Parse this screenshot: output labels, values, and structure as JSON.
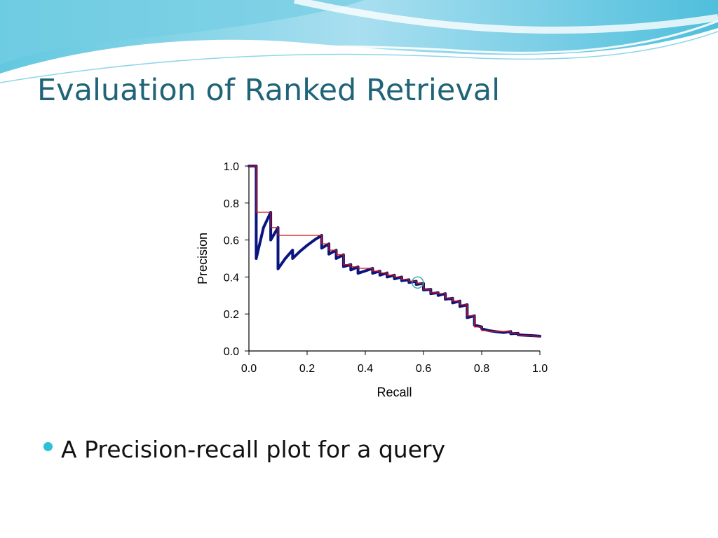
{
  "slide": {
    "title": "Evaluation of Ranked Retrieval",
    "bullets": [
      "A Precision-recall plot for a query"
    ],
    "accent_color": "#2cc1d6",
    "title_color": "#1f6477"
  },
  "chart_data": {
    "type": "line",
    "title": "",
    "xlabel": "Recall",
    "ylabel": "Precision",
    "xlim": [
      0,
      1
    ],
    "ylim": [
      0,
      1
    ],
    "xticks": [
      "0.0",
      "0.2",
      "0.4",
      "0.6",
      "0.8",
      "1.0"
    ],
    "yticks": [
      "0.0",
      "0.2",
      "0.4",
      "0.6",
      "0.8",
      "1.0"
    ],
    "grid": false,
    "legend": "none",
    "series": [
      {
        "name": "",
        "color": "#0a1580",
        "points": [
          [
            0.0,
            1.0
          ],
          [
            0.025,
            1.0
          ],
          [
            0.025,
            0.5
          ],
          [
            0.05,
            0.667
          ],
          [
            0.075,
            0.75
          ],
          [
            0.075,
            0.6
          ],
          [
            0.1,
            0.667
          ],
          [
            0.1,
            0.444
          ],
          [
            0.125,
            0.5
          ],
          [
            0.15,
            0.545
          ],
          [
            0.15,
            0.5
          ],
          [
            0.175,
            0.538
          ],
          [
            0.2,
            0.571
          ],
          [
            0.225,
            0.6
          ],
          [
            0.25,
            0.625
          ],
          [
            0.25,
            0.556
          ],
          [
            0.275,
            0.579
          ],
          [
            0.275,
            0.524
          ],
          [
            0.3,
            0.545
          ],
          [
            0.3,
            0.5
          ],
          [
            0.325,
            0.52
          ],
          [
            0.325,
            0.456
          ],
          [
            0.35,
            0.467
          ],
          [
            0.35,
            0.438
          ],
          [
            0.375,
            0.455
          ],
          [
            0.375,
            0.42
          ],
          [
            0.4,
            0.433
          ],
          [
            0.425,
            0.447
          ],
          [
            0.425,
            0.42
          ],
          [
            0.45,
            0.432
          ],
          [
            0.45,
            0.41
          ],
          [
            0.475,
            0.422
          ],
          [
            0.475,
            0.4
          ],
          [
            0.5,
            0.41
          ],
          [
            0.5,
            0.39
          ],
          [
            0.525,
            0.4
          ],
          [
            0.525,
            0.38
          ],
          [
            0.55,
            0.385
          ],
          [
            0.55,
            0.37
          ],
          [
            0.575,
            0.377
          ],
          [
            0.575,
            0.36
          ],
          [
            0.6,
            0.365
          ],
          [
            0.6,
            0.33
          ],
          [
            0.625,
            0.333
          ],
          [
            0.625,
            0.31
          ],
          [
            0.65,
            0.315
          ],
          [
            0.65,
            0.3
          ],
          [
            0.675,
            0.31
          ],
          [
            0.675,
            0.28
          ],
          [
            0.7,
            0.285
          ],
          [
            0.7,
            0.26
          ],
          [
            0.725,
            0.27
          ],
          [
            0.725,
            0.24
          ],
          [
            0.75,
            0.25
          ],
          [
            0.75,
            0.18
          ],
          [
            0.775,
            0.19
          ],
          [
            0.775,
            0.14
          ],
          [
            0.8,
            0.13
          ],
          [
            0.8,
            0.12
          ],
          [
            0.825,
            0.11
          ],
          [
            0.85,
            0.104
          ],
          [
            0.875,
            0.1
          ],
          [
            0.9,
            0.105
          ],
          [
            0.9,
            0.093
          ],
          [
            0.925,
            0.095
          ],
          [
            0.925,
            0.087
          ],
          [
            0.95,
            0.085
          ],
          [
            0.975,
            0.083
          ],
          [
            1.0,
            0.08
          ]
        ]
      },
      {
        "name": "",
        "color": "#d01010",
        "points": [
          [
            0.0,
            1.0
          ],
          [
            0.025,
            1.0
          ],
          [
            0.025,
            0.75
          ],
          [
            0.075,
            0.75
          ],
          [
            0.075,
            0.667
          ],
          [
            0.1,
            0.667
          ],
          [
            0.1,
            0.625
          ],
          [
            0.25,
            0.625
          ],
          [
            0.25,
            0.579
          ],
          [
            0.275,
            0.579
          ],
          [
            0.275,
            0.545
          ],
          [
            0.3,
            0.545
          ],
          [
            0.3,
            0.52
          ],
          [
            0.325,
            0.52
          ],
          [
            0.325,
            0.467
          ],
          [
            0.35,
            0.467
          ],
          [
            0.35,
            0.455
          ],
          [
            0.375,
            0.455
          ],
          [
            0.375,
            0.447
          ],
          [
            0.425,
            0.447
          ],
          [
            0.425,
            0.432
          ],
          [
            0.45,
            0.432
          ],
          [
            0.45,
            0.422
          ],
          [
            0.475,
            0.422
          ],
          [
            0.475,
            0.41
          ],
          [
            0.5,
            0.41
          ],
          [
            0.5,
            0.4
          ],
          [
            0.525,
            0.4
          ],
          [
            0.525,
            0.385
          ],
          [
            0.55,
            0.385
          ],
          [
            0.55,
            0.377
          ],
          [
            0.575,
            0.377
          ],
          [
            0.575,
            0.365
          ],
          [
            0.6,
            0.365
          ],
          [
            0.6,
            0.333
          ],
          [
            0.625,
            0.333
          ],
          [
            0.625,
            0.315
          ],
          [
            0.65,
            0.315
          ],
          [
            0.65,
            0.31
          ],
          [
            0.675,
            0.31
          ],
          [
            0.675,
            0.285
          ],
          [
            0.7,
            0.285
          ],
          [
            0.7,
            0.27
          ],
          [
            0.725,
            0.27
          ],
          [
            0.725,
            0.25
          ],
          [
            0.75,
            0.25
          ],
          [
            0.75,
            0.19
          ],
          [
            0.775,
            0.19
          ],
          [
            0.775,
            0.13
          ],
          [
            0.8,
            0.13
          ],
          [
            0.8,
            0.11
          ],
          [
            0.825,
            0.11
          ],
          [
            0.825,
            0.105
          ],
          [
            0.9,
            0.105
          ],
          [
            0.9,
            0.095
          ],
          [
            0.925,
            0.095
          ],
          [
            0.925,
            0.085
          ],
          [
            0.95,
            0.085
          ],
          [
            0.95,
            0.083
          ],
          [
            0.975,
            0.083
          ],
          [
            0.975,
            0.08
          ],
          [
            1.0,
            0.08
          ]
        ]
      }
    ],
    "annotations": [
      {
        "type": "circle",
        "x": 0.58,
        "y": 0.37,
        "color": "#2fa8a0"
      }
    ]
  }
}
